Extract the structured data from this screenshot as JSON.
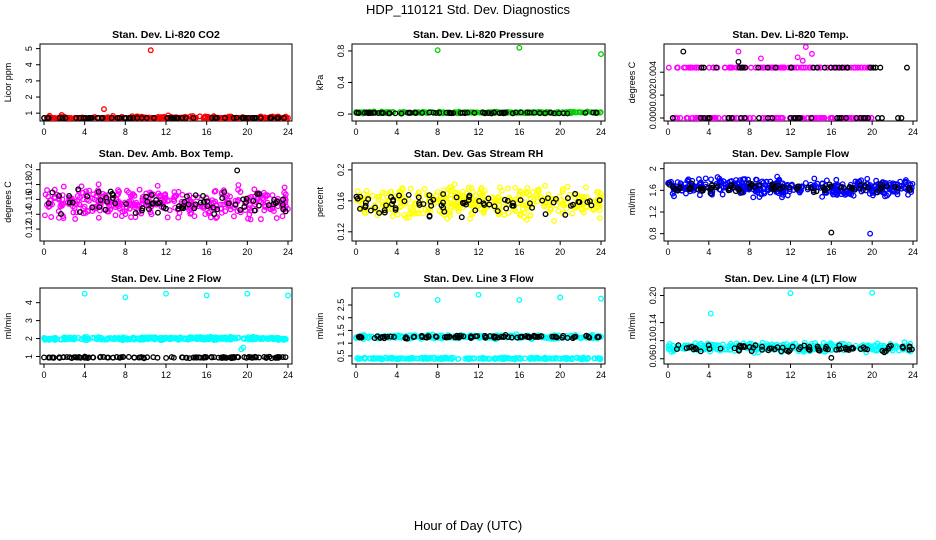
{
  "figure": {
    "title": "HDP_110121  Std. Dev. Diagnostics",
    "xlabel": "Hour of Day (UTC)"
  },
  "chart_data": [
    {
      "type": "scatter",
      "title": "Stan. Dev. Li-820 CO2",
      "ylabel": "Licor ppm",
      "xlim": [
        0,
        24
      ],
      "ylim": [
        0.7,
        5.1
      ],
      "xticks": [
        0,
        4,
        8,
        12,
        16,
        20,
        24
      ],
      "yticks": [
        1,
        2,
        3,
        4,
        5
      ],
      "series": [
        {
          "color": "#ff0000",
          "base": 0.65,
          "spread": 0.25,
          "n": 260,
          "seed": 11,
          "outliers": [
            [
              10.5,
              4.9
            ],
            [
              5.9,
              1.25
            ]
          ]
        },
        {
          "color": "#000000",
          "base": 0.6,
          "spread": 0.15,
          "n": 70,
          "seed": 12,
          "outliers": []
        }
      ]
    },
    {
      "type": "scatter",
      "title": "Stan. Dev. Li-820 Pressure",
      "ylabel": "kPa",
      "xlim": [
        0,
        24
      ],
      "ylim": [
        -0.05,
        0.85
      ],
      "xticks": [
        0,
        4,
        8,
        12,
        16,
        20,
        24
      ],
      "yticks": [
        0.0,
        0.4,
        0.8
      ],
      "series": [
        {
          "color": "#00cc00",
          "base": 0.02,
          "spread": 0.015,
          "n": 200,
          "seed": 21,
          "outliers": [
            [
              8,
              0.81
            ],
            [
              16,
              0.84
            ],
            [
              24,
              0.76
            ]
          ]
        },
        {
          "color": "#000000",
          "base": 0.015,
          "spread": 0.01,
          "n": 70,
          "seed": 22,
          "outliers": []
        }
      ]
    },
    {
      "type": "scatter",
      "title": "Stan. Dev. Li-820 Temp.",
      "ylabel": "degrees C",
      "xlim": [
        0,
        24
      ],
      "ylim": [
        0,
        0.0062
      ],
      "xticks": [
        0,
        4,
        8,
        12,
        16,
        20,
        24
      ],
      "yticks": [
        0.0,
        0.002,
        0.004
      ],
      "tick_labels": [
        "0.000",
        "0.002",
        "0.004"
      ],
      "series": [
        {
          "color": "#ff00ff",
          "mode": "levels",
          "levels": [
            0,
            0.0044
          ],
          "xmax": 20,
          "n": 220,
          "seed": 31,
          "outliers": [
            [
              13.5,
              0.0062
            ],
            [
              12.7,
              0.0053
            ],
            [
              6.9,
              0.0058
            ],
            [
              9.1,
              0.0052
            ],
            [
              13.2,
              0.005
            ],
            [
              14.1,
              0.0056
            ]
          ]
        },
        {
          "color": "#000000",
          "mode": "levels",
          "levels": [
            0,
            0.0044
          ],
          "xmax": 24,
          "n": 60,
          "seed": 32,
          "outliers": [
            [
              1.5,
              0.0058
            ],
            [
              6.9,
              0.0049
            ]
          ]
        }
      ]
    },
    {
      "type": "scatter",
      "title": "Stan. Dev. Amb. Box Temp.",
      "ylabel": "degrees C",
      "xlim": [
        0,
        24
      ],
      "ylim": [
        0.108,
        0.205
      ],
      "xticks": [
        0,
        4,
        8,
        12,
        16,
        20,
        24
      ],
      "yticks": [
        0.12,
        0.14,
        0.16,
        0.18,
        0.2
      ],
      "series": [
        {
          "color": "#ff00ff",
          "base": 0.155,
          "spread": 0.028,
          "n": 360,
          "seed": 41,
          "outliers": []
        },
        {
          "color": "#000000",
          "base": 0.155,
          "spread": 0.022,
          "n": 80,
          "seed": 42,
          "outliers": [
            [
              19,
              0.199
            ]
          ]
        }
      ]
    },
    {
      "type": "scatter",
      "title": "Stan. Dev. Gas Stream RH",
      "ylabel": "percent",
      "xlim": [
        0,
        24
      ],
      "ylim": [
        0.112,
        0.205
      ],
      "xticks": [
        0,
        4,
        8,
        12,
        16,
        20,
        24
      ],
      "yticks": [
        0.12,
        0.16,
        0.2
      ],
      "series": [
        {
          "color": "#ffff00",
          "base": 0.158,
          "spread": 0.028,
          "n": 380,
          "seed": 51,
          "outliers": []
        },
        {
          "color": "#000000",
          "base": 0.157,
          "spread": 0.022,
          "n": 80,
          "seed": 52,
          "outliers": []
        }
      ]
    },
    {
      "type": "scatter",
      "title": "Stan. Dev. Sample Flow",
      "ylabel": "ml/min",
      "xlim": [
        0,
        24
      ],
      "ylim": [
        0.72,
        2.05
      ],
      "xticks": [
        0,
        4,
        8,
        12,
        16,
        20,
        24
      ],
      "yticks": [
        0.8,
        1.2,
        1.6,
        2.0
      ],
      "series": [
        {
          "color": "#0000ff",
          "base": 1.65,
          "spread": 0.22,
          "n": 380,
          "seed": 61,
          "outliers": [
            [
              19.8,
              0.8
            ]
          ]
        },
        {
          "color": "#000000",
          "base": 1.65,
          "spread": 0.12,
          "n": 80,
          "seed": 62,
          "outliers": [
            [
              16,
              0.82
            ]
          ]
        }
      ]
    },
    {
      "type": "scatter",
      "title": "Stan. Dev. Line 2 Flow",
      "ylabel": "ml/min",
      "xlim": [
        0,
        24
      ],
      "ylim": [
        0.75,
        4.65
      ],
      "xticks": [
        0,
        4,
        8,
        12,
        16,
        20,
        24
      ],
      "yticks": [
        1,
        2,
        3,
        4
      ],
      "series": [
        {
          "color": "#00ffff",
          "base": 2.0,
          "spread": 0.12,
          "n": 300,
          "seed": 71,
          "outliers": [
            [
              4,
              4.5
            ],
            [
              8,
              4.3
            ],
            [
              12,
              4.5
            ],
            [
              16,
              4.4
            ],
            [
              20,
              4.5
            ],
            [
              24,
              4.4
            ],
            [
              19.4,
              1.4
            ],
            [
              19.6,
              1.5
            ]
          ]
        },
        {
          "color": "#000000",
          "base": 0.95,
          "spread": 0.06,
          "n": 120,
          "seed": 72,
          "outliers": []
        }
      ]
    },
    {
      "type": "scatter",
      "title": "Stan. Dev. Line 3 Flow",
      "ylabel": "ml/min",
      "xlim": [
        0,
        24
      ],
      "ylim": [
        0.3,
        3.05
      ],
      "xticks": [
        0,
        4,
        8,
        12,
        16,
        20,
        24
      ],
      "yticks": [
        0.5,
        1.0,
        1.5,
        2.0,
        2.5
      ],
      "series": [
        {
          "color": "#00ffff",
          "base": 1.25,
          "spread": 0.12,
          "n": 260,
          "seed": 81,
          "outliers": [
            [
              4,
              2.9
            ],
            [
              8,
              2.7
            ],
            [
              12,
              2.9
            ],
            [
              16,
              2.7
            ],
            [
              20,
              2.8
            ],
            [
              24,
              2.75
            ]
          ]
        },
        {
          "color": "#00ffff",
          "base": 0.4,
          "spread": 0.05,
          "n": 200,
          "seed": 82,
          "outliers": []
        },
        {
          "color": "#000000",
          "base": 1.25,
          "spread": 0.08,
          "n": 100,
          "seed": 83,
          "outliers": []
        }
      ]
    },
    {
      "type": "scatter",
      "title": "Stan. Dev. Line 4 (LT) Flow",
      "ylabel": "ml/min",
      "xlim": [
        0,
        24
      ],
      "ylim": [
        0.055,
        0.21
      ],
      "xticks": [
        0,
        4,
        8,
        12,
        16,
        20,
        24
      ],
      "yticks": [
        0.06,
        0.1,
        0.14,
        0.2
      ],
      "tick_labels": [
        "0.06",
        "0.10",
        "0.14",
        "0.20"
      ],
      "series": [
        {
          "color": "#00ffff",
          "base": 0.085,
          "spread": 0.014,
          "n": 340,
          "seed": 91,
          "outliers": [
            [
              12,
              0.205
            ],
            [
              20,
              0.206
            ],
            [
              4.2,
              0.16
            ]
          ]
        },
        {
          "color": "#000000",
          "base": 0.083,
          "spread": 0.012,
          "n": 80,
          "seed": 92,
          "outliers": [
            [
              16,
              0.062
            ]
          ]
        }
      ]
    }
  ]
}
